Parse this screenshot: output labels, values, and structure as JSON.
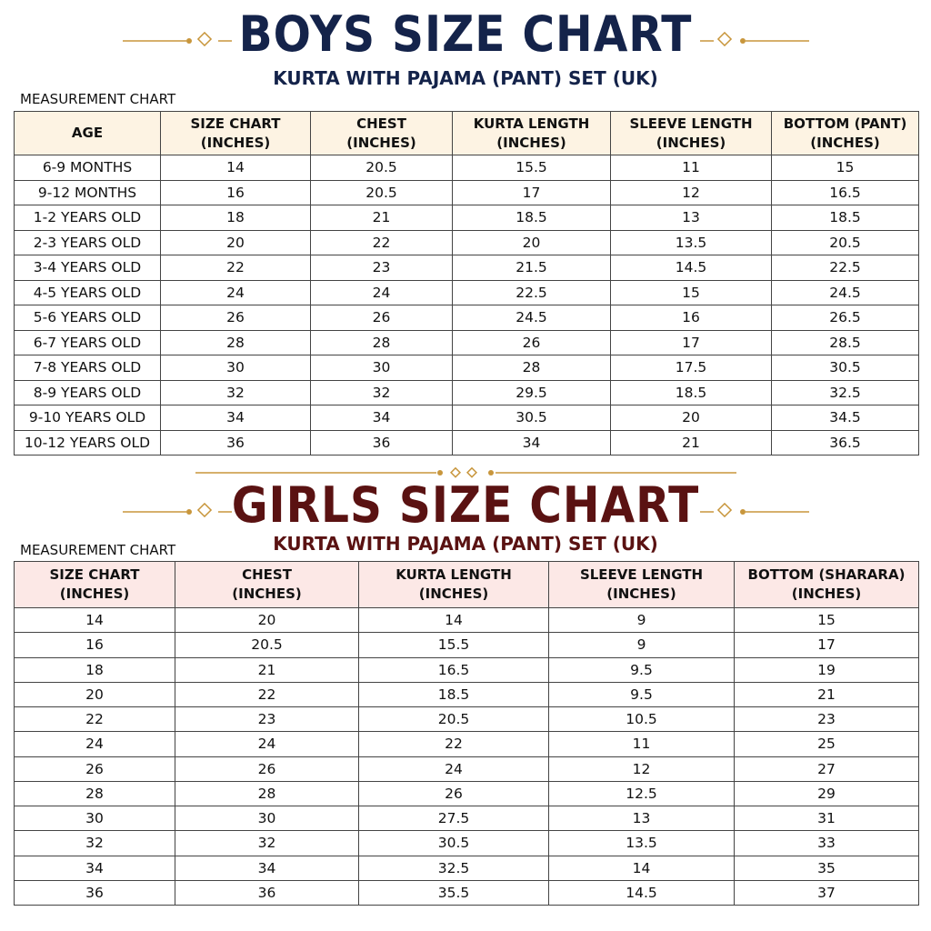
{
  "boys": {
    "title": "BOYS SIZE CHART",
    "subtitle": "KURTA WITH PAJAMA (PANT) SET (UK)",
    "label": "MEASUREMENT CHART",
    "header": [
      [
        "AGE"
      ],
      [
        "SIZE CHART",
        "(INCHES)"
      ],
      [
        "CHEST",
        "(INCHES)"
      ],
      [
        "KURTA LENGTH",
        "(INCHES)"
      ],
      [
        "SLEEVE LENGTH",
        "(INCHES)"
      ],
      [
        "BOTTOM (PANT)",
        "(INCHES)"
      ]
    ],
    "rows": [
      [
        "6-9 MONTHS",
        14,
        20.5,
        15.5,
        11,
        15
      ],
      [
        "9-12 MONTHS",
        16,
        20.5,
        17,
        12,
        16.5
      ],
      [
        "1-2 YEARS OLD",
        18,
        21,
        18.5,
        13,
        18.5
      ],
      [
        "2-3 YEARS OLD",
        20,
        22,
        20,
        13.5,
        20.5
      ],
      [
        "3-4 YEARS OLD",
        22,
        23,
        21.5,
        14.5,
        22.5
      ],
      [
        "4-5 YEARS OLD",
        24,
        24,
        22.5,
        15,
        24.5
      ],
      [
        "5-6 YEARS OLD",
        26,
        26,
        24.5,
        16,
        26.5
      ],
      [
        "6-7 YEARS OLD",
        28,
        28,
        26,
        17,
        28.5
      ],
      [
        "7-8 YEARS OLD",
        30,
        30,
        28,
        17.5,
        30.5
      ],
      [
        "8-9 YEARS OLD",
        32,
        32,
        29.5,
        18.5,
        32.5
      ],
      [
        "9-10 YEARS OLD",
        34,
        34,
        30.5,
        20,
        34.5
      ],
      [
        "10-12 YEARS OLD",
        36,
        36,
        34,
        21,
        36.5
      ]
    ]
  },
  "girls": {
    "title": "GIRLS SIZE CHART",
    "subtitle": "KURTA WITH PAJAMA (PANT) SET (UK)",
    "label": "MEASUREMENT CHART",
    "header": [
      [
        "SIZE CHART",
        "(INCHES)"
      ],
      [
        "CHEST",
        "(INCHES)"
      ],
      [
        "KURTA LENGTH",
        "(INCHES)"
      ],
      [
        "SLEEVE LENGTH",
        "(INCHES)"
      ],
      [
        "BOTTOM (SHARARA)",
        "(INCHES)"
      ]
    ],
    "rows": [
      [
        14,
        20,
        14,
        9,
        15
      ],
      [
        16,
        20.5,
        15.5,
        9,
        17
      ],
      [
        18,
        21,
        16.5,
        9.5,
        19
      ],
      [
        20,
        22,
        18.5,
        9.5,
        21
      ],
      [
        22,
        23,
        20.5,
        10.5,
        23
      ],
      [
        24,
        24,
        22,
        11,
        25
      ],
      [
        26,
        26,
        24,
        12,
        27
      ],
      [
        28,
        28,
        26,
        12.5,
        29
      ],
      [
        30,
        30,
        27.5,
        13,
        31
      ],
      [
        32,
        32,
        30.5,
        13.5,
        33
      ],
      [
        34,
        34,
        32.5,
        14,
        35
      ],
      [
        36,
        36,
        35.5,
        14.5,
        37
      ]
    ]
  }
}
